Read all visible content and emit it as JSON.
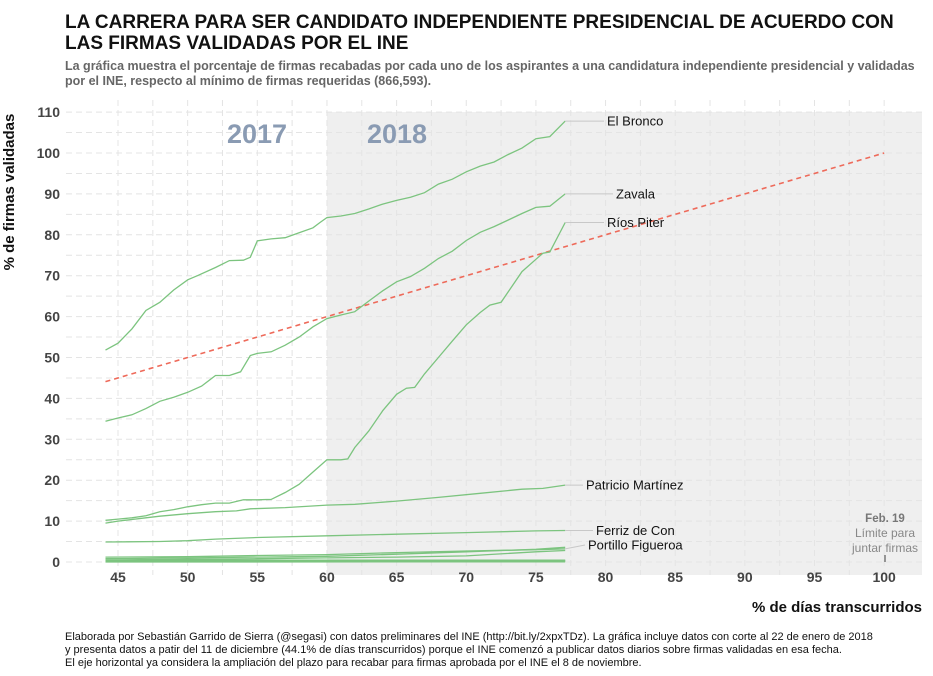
{
  "title": "LA CARRERA PARA SER CANDIDATO INDEPENDIENTE PRESIDENCIAL DE ACUERDO CON LAS FIRMAS VALIDADAS POR EL INE",
  "subtitle": "La gráfica muestra el porcentaje de firmas recabadas por cada uno de los aspirantes a una candidatura independiente presidencial y validadas por el INE, respecto al mínimo de firmas requeridas (866,593).",
  "caption": [
    "Elaborada por Sebastián Garrido de Sierra (@segasi) con datos preliminares del INE (http://bit.ly/2xpxTDz). La gráfica incluye datos con corte al 22 de enero de 2018",
    "y presenta datos a patir del 11 de diciembre (44.1% de días transcurridos) porque el INE comenzó a publicar datos diarios sobre firmas validadas en esa fecha.",
    "El eje horizontal ya considera la ampliación del plazo para recabar para firmas aprobada por el INE el 8 de noviembre."
  ],
  "chart_data": {
    "type": "line",
    "xlabel": "% de días transcurridos",
    "ylabel": "% de firmas validadas",
    "xlim": [
      42,
      103
    ],
    "ylim": [
      0,
      110
    ],
    "xticks": [
      45,
      50,
      55,
      60,
      65,
      70,
      75,
      80,
      85,
      90,
      95,
      100
    ],
    "yticks": [
      0,
      10,
      20,
      30,
      40,
      50,
      60,
      70,
      80,
      90,
      100,
      110
    ],
    "grid": true,
    "colors": {
      "series": "#7cc47f",
      "reference": "#ee6a5a",
      "shade_2018": "#efefef",
      "year_label": "#8a9bb3",
      "leader": "#c8c8c8"
    },
    "shaded_region": {
      "from_x": 60,
      "label_left": "2017",
      "label_right": "2018"
    },
    "reference_line": {
      "points": [
        [
          44.1,
          44.1
        ],
        [
          100,
          100
        ]
      ],
      "style": "dashed"
    },
    "annotation": {
      "x": 100,
      "title": "Feb. 19",
      "lines": [
        "Límite para",
        "juntar firmas"
      ]
    },
    "series": [
      {
        "name": "El Bronco",
        "points": [
          [
            44.1,
            51.8
          ],
          [
            45,
            53.5
          ],
          [
            46,
            57
          ],
          [
            47,
            61.5
          ],
          [
            48,
            63.5
          ],
          [
            49,
            66.5
          ],
          [
            50,
            69
          ],
          [
            50.7,
            70
          ],
          [
            52,
            72
          ],
          [
            53,
            73.7
          ],
          [
            54,
            73.8
          ],
          [
            54.5,
            74.5
          ],
          [
            55,
            78.5
          ],
          [
            56,
            79
          ],
          [
            57,
            79.3
          ],
          [
            58,
            80.5
          ],
          [
            59,
            81.7
          ],
          [
            59.5,
            83
          ],
          [
            60,
            84.2
          ],
          [
            61,
            84.6
          ],
          [
            62,
            85.2
          ],
          [
            63,
            86.3
          ],
          [
            64,
            87.5
          ],
          [
            65,
            88.4
          ],
          [
            66,
            89.2
          ],
          [
            67,
            90.3
          ],
          [
            68,
            92.4
          ],
          [
            69,
            93.6
          ],
          [
            70,
            95.4
          ],
          [
            71,
            96.8
          ],
          [
            72,
            97.8
          ],
          [
            73,
            99.6
          ],
          [
            74,
            101.2
          ],
          [
            75,
            103.5
          ],
          [
            76,
            104
          ],
          [
            77.1,
            107.8
          ]
        ]
      },
      {
        "name": "Zavala",
        "points": [
          [
            44.1,
            34.4
          ],
          [
            45,
            35.2
          ],
          [
            46,
            36
          ],
          [
            47,
            37.5
          ],
          [
            48,
            39.3
          ],
          [
            49,
            40.3
          ],
          [
            50,
            41.5
          ],
          [
            51,
            43
          ],
          [
            52,
            45.6
          ],
          [
            53,
            45.6
          ],
          [
            53.8,
            46.5
          ],
          [
            54.5,
            50.5
          ],
          [
            55,
            51
          ],
          [
            56,
            51.4
          ],
          [
            57,
            53
          ],
          [
            58,
            55
          ],
          [
            59,
            57.5
          ],
          [
            60,
            59.5
          ],
          [
            61,
            60.4
          ],
          [
            62,
            61.2
          ],
          [
            63,
            63.8
          ],
          [
            64,
            66.3
          ],
          [
            65,
            68.5
          ],
          [
            66,
            69.8
          ],
          [
            67,
            71.8
          ],
          [
            68,
            74.2
          ],
          [
            69,
            76
          ],
          [
            70,
            78.6
          ],
          [
            71,
            80.6
          ],
          [
            72,
            82
          ],
          [
            73,
            83.6
          ],
          [
            74,
            85.2
          ],
          [
            75,
            86.7
          ],
          [
            76,
            87
          ],
          [
            77.1,
            90
          ]
        ]
      },
      {
        "name": "Ríos Piter",
        "points": [
          [
            44.1,
            10.2
          ],
          [
            45,
            10.5
          ],
          [
            46,
            10.8
          ],
          [
            47,
            11.3
          ],
          [
            48,
            12.3
          ],
          [
            49,
            12.8
          ],
          [
            50,
            13.5
          ],
          [
            51,
            14
          ],
          [
            52,
            14.4
          ],
          [
            53,
            14.4
          ],
          [
            54,
            15.2
          ],
          [
            55,
            15.2
          ],
          [
            56,
            15.3
          ],
          [
            57,
            17
          ],
          [
            58,
            19
          ],
          [
            59,
            22
          ],
          [
            60,
            25
          ],
          [
            61,
            25
          ],
          [
            61.5,
            25.2
          ],
          [
            62,
            28
          ],
          [
            63,
            32
          ],
          [
            64,
            37
          ],
          [
            65,
            41
          ],
          [
            65.7,
            42.5
          ],
          [
            66.3,
            42.7
          ],
          [
            67,
            46
          ],
          [
            68,
            50
          ],
          [
            69,
            54
          ],
          [
            70,
            58
          ],
          [
            71,
            61
          ],
          [
            71.7,
            62.8
          ],
          [
            72.5,
            63.5
          ],
          [
            73,
            66
          ],
          [
            74,
            71
          ],
          [
            75,
            74
          ],
          [
            75.5,
            75.5
          ],
          [
            76,
            75.8
          ],
          [
            77.1,
            83
          ]
        ]
      },
      {
        "name": "Patricio Martínez",
        "points": [
          [
            44.1,
            9.5
          ],
          [
            45,
            10
          ],
          [
            46,
            10.4
          ],
          [
            47,
            10.8
          ],
          [
            48,
            11.2
          ],
          [
            50,
            11.8
          ],
          [
            52,
            12.3
          ],
          [
            53.5,
            12.5
          ],
          [
            54.5,
            13
          ],
          [
            57,
            13.3
          ],
          [
            60,
            13.9
          ],
          [
            62,
            14.1
          ],
          [
            65,
            14.9
          ],
          [
            68,
            15.8
          ],
          [
            71,
            16.8
          ],
          [
            74,
            17.8
          ],
          [
            75.5,
            18
          ],
          [
            77.1,
            18.8
          ]
        ]
      },
      {
        "name": "Ferriz de Con",
        "points": [
          [
            44.1,
            4.9
          ],
          [
            48,
            5
          ],
          [
            50,
            5.2
          ],
          [
            52,
            5.6
          ],
          [
            55,
            6
          ],
          [
            60,
            6.4
          ],
          [
            65,
            6.8
          ],
          [
            70,
            7.2
          ],
          [
            75,
            7.6
          ],
          [
            77.1,
            7.7
          ]
        ]
      },
      {
        "name": "Portillo Figueroa",
        "points": [
          [
            44.1,
            1.2
          ],
          [
            50,
            1.3
          ],
          [
            55,
            1.6
          ],
          [
            60,
            1.8
          ],
          [
            65,
            2.3
          ],
          [
            70,
            2.7
          ],
          [
            75,
            3
          ],
          [
            77.1,
            3.2
          ]
        ]
      },
      {
        "points": [
          [
            44.1,
            0.8
          ],
          [
            50,
            1
          ],
          [
            55,
            1.2
          ],
          [
            60,
            1.4
          ],
          [
            65,
            1.9
          ],
          [
            70,
            2.5
          ],
          [
            75,
            3.1
          ],
          [
            77.1,
            3.6
          ]
        ]
      },
      {
        "points": [
          [
            44.1,
            0.5
          ],
          [
            50,
            0.7
          ],
          [
            55,
            0.8
          ],
          [
            60,
            1
          ],
          [
            65,
            1.2
          ],
          [
            70,
            1.5
          ],
          [
            75,
            2.5
          ],
          [
            77.1,
            2.8
          ]
        ]
      },
      {
        "points": [
          [
            44.1,
            0.3
          ],
          [
            77.1,
            0.3
          ]
        ]
      },
      {
        "points": [
          [
            44.1,
            0.15
          ],
          [
            77.1,
            0.2
          ]
        ]
      }
    ]
  }
}
